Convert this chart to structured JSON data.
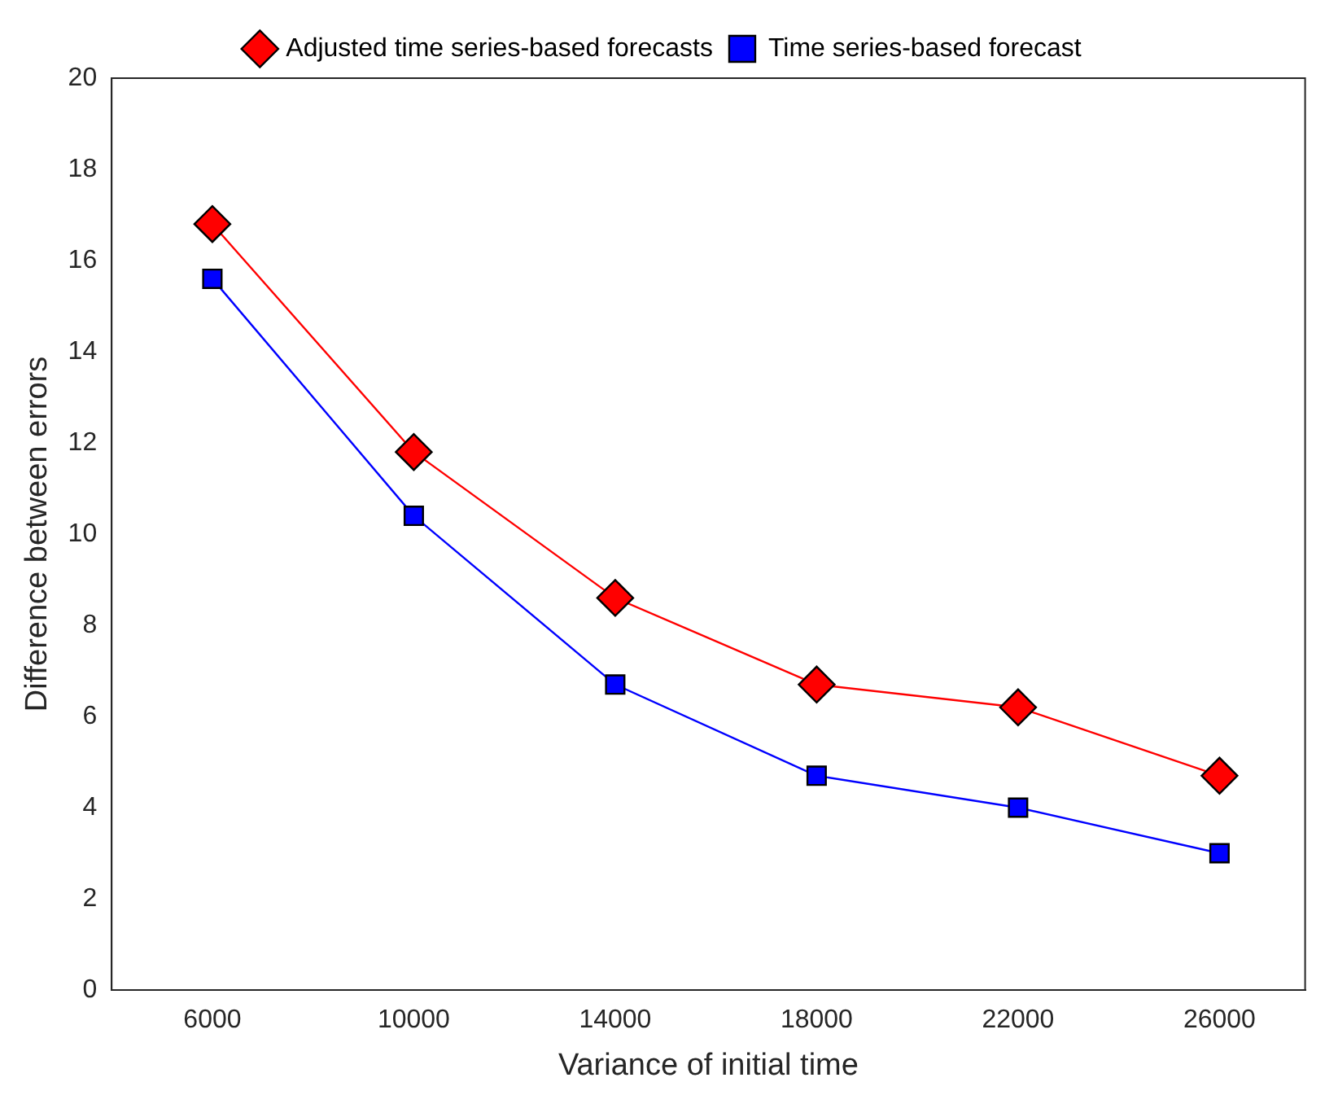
{
  "chart_data": {
    "type": "line",
    "xlabel": "Variance of initial time",
    "ylabel": "Difference between errors",
    "x": [
      6000,
      10000,
      14000,
      18000,
      22000,
      26000
    ],
    "series": [
      {
        "name": "Adjusted time series-based forecasts",
        "color": "#ff0000",
        "marker": "diamond",
        "values": [
          16.8,
          11.8,
          8.6,
          6.7,
          6.2,
          4.7
        ]
      },
      {
        "name": "Time series-based forecast",
        "color": "#0000ff",
        "marker": "square",
        "values": [
          15.6,
          10.4,
          6.7,
          4.7,
          4.0,
          3.0
        ]
      }
    ],
    "xlim": [
      4000,
      27700
    ],
    "xticks": [
      6000,
      10000,
      14000,
      18000,
      22000,
      26000
    ],
    "ylim": [
      0,
      20
    ],
    "yticks": [
      0,
      2,
      4,
      6,
      8,
      10,
      12,
      14,
      16,
      18,
      20
    ],
    "grid": false,
    "legend": "top"
  }
}
